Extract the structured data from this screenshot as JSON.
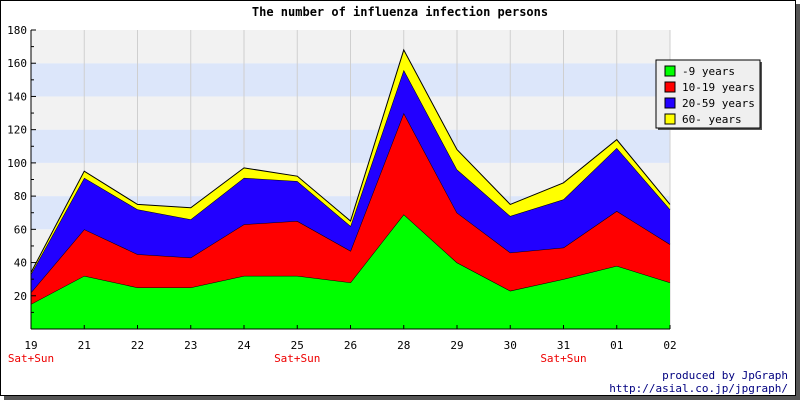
{
  "chart_data": {
    "type": "area",
    "stacked": true,
    "title": "The number of influenza infection persons",
    "categories": [
      "19",
      "21",
      "22",
      "23",
      "24",
      "25",
      "26",
      "28",
      "29",
      "30",
      "31",
      "01",
      "02"
    ],
    "weekend_label": "Sat+Sun",
    "weekend_categories": [
      "19",
      "25",
      "31"
    ],
    "ylim": [
      0,
      180
    ],
    "yticks": [
      20,
      40,
      60,
      80,
      100,
      120,
      140,
      160,
      180
    ],
    "grid": true,
    "legend_position": "top-right",
    "series": [
      {
        "name": "-9 years",
        "color": "#00ff00",
        "values": [
          15,
          32,
          25,
          25,
          32,
          32,
          28,
          69,
          40,
          23,
          30,
          38,
          28
        ]
      },
      {
        "name": "10-19 years",
        "color": "#ff0000",
        "values": [
          7,
          28,
          20,
          18,
          31,
          33,
          19,
          61,
          30,
          23,
          19,
          33,
          23
        ]
      },
      {
        "name": "20-59 years",
        "color": "#2200ff",
        "values": [
          11,
          31,
          27,
          23,
          28,
          24,
          15,
          26,
          26,
          22,
          29,
          38,
          21
        ]
      },
      {
        "name": "60- years",
        "color": "#ffff00",
        "values": [
          1,
          4,
          3,
          7,
          6,
          3,
          3,
          12,
          12,
          7,
          10,
          5,
          3
        ]
      }
    ]
  },
  "footer": {
    "credit_line1": "produced by JpGraph",
    "credit_line2": "http://asial.co.jp/jpgraph/"
  }
}
